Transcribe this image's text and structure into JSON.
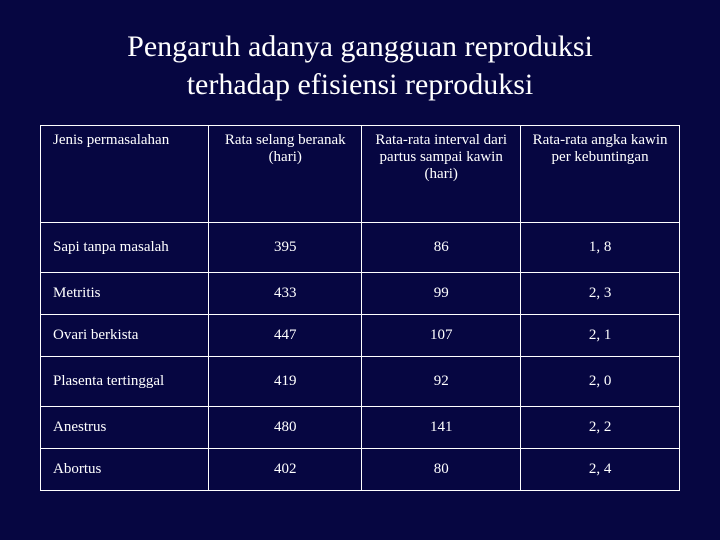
{
  "title_line1": "Pengaruh adanya gangguan reproduksi",
  "title_line2": "terhadap efisiensi reproduksi",
  "table": {
    "type": "table",
    "background_color": "#060641",
    "border_color": "#ffffff",
    "text_color": "#ffffff",
    "header_fontsize": 15,
    "cell_fontsize": 15,
    "columns": [
      "Jenis permasalahan",
      "Rata selang beranak (hari)",
      "Rata-rata interval dari partus sampai kawin (hari)",
      "Rata-rata angka kawin per kebuntingan"
    ],
    "column_align": [
      "left",
      "center",
      "center",
      "center"
    ],
    "rows": [
      [
        "Sapi tanpa masalah",
        "395",
        "86",
        "1, 8"
      ],
      [
        "Metritis",
        "433",
        "99",
        "2, 3"
      ],
      [
        "Ovari berkista",
        "447",
        "107",
        "2, 1"
      ],
      [
        "Plasenta tertinggal",
        "419",
        "92",
        "2, 0"
      ],
      [
        "Anestrus",
        "480",
        "141",
        "2, 2"
      ],
      [
        "Abortus",
        "402",
        "80",
        "2, 4"
      ]
    ],
    "tall_rows": [
      0,
      3
    ]
  }
}
